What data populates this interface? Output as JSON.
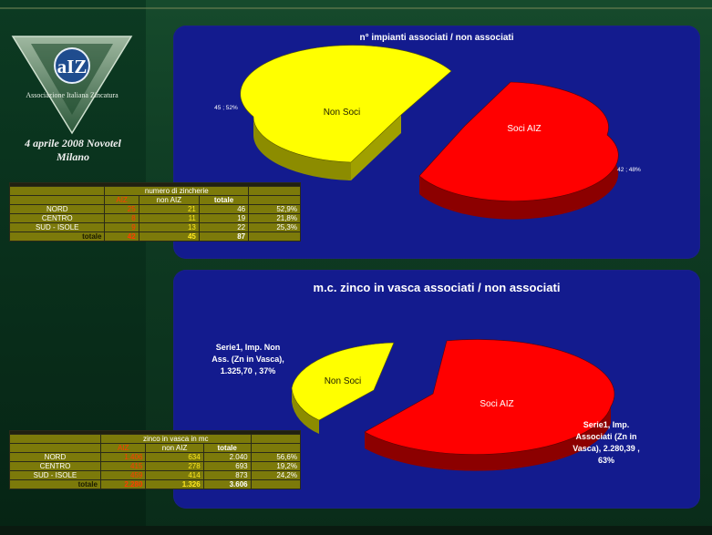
{
  "logo": {
    "mark": "aIZ",
    "subtitle": "Associazione Italiana Zincatura"
  },
  "event": {
    "line1": "4 aprile 2008 Novotel",
    "line2": "Milano"
  },
  "colors": {
    "soci": "#ff0000",
    "non_soci": "#ffff00",
    "panel": "#131b8e",
    "table": "#7c7a0a"
  },
  "chart_data": [
    {
      "type": "pie",
      "title": "n° impianti associati / non associati",
      "categories": [
        "Soci AIZ",
        "Non Soci"
      ],
      "values": [
        42,
        45
      ],
      "data_labels": [
        "42 ; 48%",
        "45 ; 52%"
      ]
    },
    {
      "type": "pie",
      "title": "m.c. zinco in vasca associati / non associati",
      "categories": [
        "Soci AIZ",
        "Non Soci"
      ],
      "values": [
        2280.39,
        1325.7
      ],
      "data_labels": [
        "Serie1, Imp. Associati (Zn in Vasca), 2.280,39 , 63%",
        "Serie1, Imp. Non Ass. (Zn in Vasca), 1.325,70 , 37%"
      ]
    }
  ],
  "pie1": {
    "label_soci": "Soci AIZ",
    "label_non": "Non Soci",
    "data_soci": "42 ; 48%",
    "data_non": "45 ; 52%"
  },
  "pie2": {
    "label_soci": "Soci AIZ",
    "label_non": "Non Soci",
    "data_soci_1": "Serie1, Imp.",
    "data_soci_2": "Associati (Zn in",
    "data_soci_3": "Vasca),  2.280,39 ,",
    "data_soci_4": "63%",
    "data_non_1": "Serie1, Imp. Non",
    "data_non_2": "Ass. (Zn in Vasca),",
    "data_non_3": "1.325,70 , 37%"
  },
  "table1": {
    "group_header": "numero di zincherie",
    "col_aiz": "AIZ",
    "col_non": "non AIZ",
    "col_tot": "totale",
    "rows": [
      {
        "label": "NORD",
        "aiz": "25",
        "non": "21",
        "tot": "46",
        "pct": "52,9%"
      },
      {
        "label": "CENTRO",
        "aiz": "8",
        "non": "11",
        "tot": "19",
        "pct": "21,8%"
      },
      {
        "label": "SUD - ISOLE",
        "aiz": "9",
        "non": "13",
        "tot": "22",
        "pct": "25,3%"
      }
    ],
    "total": {
      "label": "totale",
      "aiz": "42",
      "non": "45",
      "tot": "87"
    }
  },
  "table2": {
    "group_header": "zinco in vasca in mc",
    "col_aiz": "AIZ",
    "col_non": "non AIZ",
    "col_tot": "totale",
    "rows": [
      {
        "label": "NORD",
        "aiz": "1.406",
        "non": "634",
        "tot": "2.040",
        "pct": "56,6%"
      },
      {
        "label": "CENTRO",
        "aiz": "415",
        "non": "278",
        "tot": "693",
        "pct": "19,2%"
      },
      {
        "label": "SUD - ISOLE",
        "aiz": "459",
        "non": "414",
        "tot": "873",
        "pct": "24,2%"
      }
    ],
    "total": {
      "label": "totale",
      "aiz": "2.280",
      "non": "1.326",
      "tot": "3.606"
    }
  }
}
